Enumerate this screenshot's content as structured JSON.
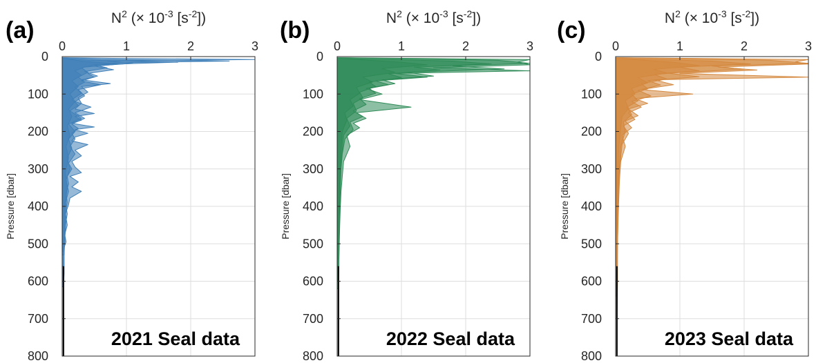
{
  "chart_data": [
    {
      "type": "line",
      "panel_label": "(a)",
      "xlabel_parts": {
        "base": "N",
        "exp": "2",
        "mid": " (× 10",
        "exp2": "-3",
        "tail": " [s",
        "exp3": "-2",
        "end": "])"
      },
      "ylabel": "Pressure [dbar]",
      "annotation": "2021 Seal data",
      "xlim": [
        0,
        3
      ],
      "ylim": [
        0,
        800
      ],
      "y_inverted": true,
      "x_axis_position": "top",
      "xticks": [
        0,
        1,
        2,
        3
      ],
      "yticks": [
        0,
        100,
        200,
        300,
        400,
        500,
        600,
        700,
        800
      ],
      "grid": true,
      "color": "#3f7fb8",
      "series": [
        {
          "x": [
            0.05,
            1.0,
            3.0,
            0.7,
            1.1,
            0.5,
            0.8,
            0.4,
            0.5,
            0.3,
            0.75,
            0.3,
            0.4,
            0.25,
            0.3,
            0.2,
            0.5,
            0.2,
            0.3,
            0.15,
            0.5,
            0.2,
            0.4,
            0.2,
            0.15,
            0.4,
            0.2,
            0.3,
            0.15,
            0.2,
            0.3,
            0.12,
            0.25,
            0.15,
            0.3,
            0.12,
            0.1,
            0.05,
            0.08,
            0.04,
            0.06,
            0.03,
            0.03,
            0.03,
            0.02
          ],
          "y": [
            3,
            5,
            8,
            12,
            18,
            25,
            35,
            45,
            55,
            62,
            72,
            80,
            95,
            110,
            125,
            140,
            152,
            160,
            170,
            178,
            188,
            195,
            205,
            215,
            225,
            235,
            250,
            265,
            280,
            295,
            310,
            320,
            335,
            348,
            360,
            378,
            395,
            420,
            450,
            475,
            495,
            510,
            540,
            580,
            615
          ]
        },
        {
          "x": [
            0.05,
            0.6,
            2.6,
            0.9,
            0.5,
            0.7,
            0.35,
            0.55,
            0.3,
            0.6,
            0.25,
            0.35,
            0.2,
            0.45,
            0.2,
            0.35,
            0.15,
            0.25,
            0.15,
            0.2,
            0.12,
            0.2,
            0.1,
            0.15,
            0.08,
            0.1,
            0.06,
            0.08,
            0.05,
            0.04,
            0.03,
            0.02
          ],
          "y": [
            3,
            8,
            12,
            16,
            22,
            30,
            40,
            52,
            65,
            75,
            88,
            105,
            120,
            135,
            150,
            165,
            180,
            192,
            205,
            220,
            240,
            260,
            285,
            300,
            320,
            340,
            365,
            390,
            420,
            460,
            500,
            560
          ]
        },
        {
          "x": [
            0.05,
            0.4,
            1.8,
            0.5,
            0.3,
            0.4,
            0.25,
            0.35,
            0.2,
            0.3,
            0.15,
            0.25,
            0.12,
            0.3,
            0.1,
            0.2,
            0.1,
            0.15,
            0.08,
            0.12,
            0.06,
            0.1,
            0.05,
            0.08,
            0.05,
            0.04,
            0.03
          ],
          "y": [
            5,
            10,
            15,
            22,
            30,
            42,
            55,
            68,
            82,
            98,
            115,
            130,
            145,
            165,
            180,
            200,
            220,
            245,
            270,
            300,
            330,
            360,
            390,
            420,
            450,
            490,
            530
          ]
        },
        {
          "x": [
            0.04,
            0.3,
            0.9,
            0.35,
            0.2,
            0.3,
            0.15,
            0.25,
            0.12,
            0.2,
            0.1,
            0.15,
            0.08,
            0.12,
            0.06,
            0.1,
            0.05,
            0.08,
            0.04,
            0.05,
            0.03
          ],
          "y": [
            5,
            12,
            20,
            28,
            38,
            50,
            65,
            80,
            100,
            120,
            140,
            160,
            185,
            210,
            240,
            270,
            310,
            350,
            400,
            460,
            520
          ]
        }
      ]
    },
    {
      "type": "line",
      "panel_label": "(b)",
      "xlabel_parts": {
        "base": "N",
        "exp": "2",
        "mid": " (× 10",
        "exp2": "-3",
        "tail": " [s",
        "exp3": "-2",
        "end": "])"
      },
      "ylabel": "Pressure [dbar]",
      "annotation": "2022 Seal data",
      "xlim": [
        0,
        3
      ],
      "ylim": [
        0,
        800
      ],
      "y_inverted": true,
      "x_axis_position": "top",
      "xticks": [
        0,
        1,
        2,
        3
      ],
      "yticks": [
        0,
        100,
        200,
        300,
        400,
        500,
        600,
        700,
        800
      ],
      "grid": true,
      "color": "#2e8b57",
      "series": [
        {
          "x": [
            0.05,
            3.0,
            2.8,
            3.0,
            1.5,
            3.0,
            0.9,
            1.4,
            0.6,
            0.8,
            0.45,
            0.7,
            0.35,
            1.15,
            0.3,
            0.45,
            0.25,
            0.35,
            0.15,
            0.2,
            0.1,
            0.08,
            0.06,
            0.05,
            0.04,
            0.03,
            0.02
          ],
          "y": [
            3,
            8,
            15,
            22,
            30,
            38,
            45,
            55,
            65,
            75,
            85,
            100,
            115,
            135,
            150,
            165,
            178,
            190,
            210,
            240,
            280,
            320,
            360,
            400,
            450,
            520,
            600
          ]
        },
        {
          "x": [
            0.05,
            2.5,
            3.0,
            1.8,
            2.6,
            1.1,
            1.5,
            0.7,
            0.9,
            0.5,
            0.6,
            0.35,
            0.45,
            0.25,
            0.4,
            0.2,
            0.25,
            0.12,
            0.08,
            0.06,
            0.05,
            0.04,
            0.03,
            0.02
          ],
          "y": [
            3,
            10,
            18,
            25,
            33,
            42,
            52,
            62,
            72,
            85,
            98,
            112,
            128,
            145,
            160,
            175,
            195,
            220,
            260,
            300,
            350,
            420,
            500,
            620
          ]
        },
        {
          "x": [
            0.04,
            1.8,
            2.4,
            1.2,
            1.6,
            0.8,
            1.0,
            0.5,
            0.6,
            0.35,
            0.4,
            0.25,
            0.3,
            0.15,
            0.2,
            0.1,
            0.08,
            0.05,
            0.04,
            0.03,
            0.02
          ],
          "y": [
            5,
            12,
            20,
            28,
            36,
            46,
            56,
            68,
            80,
            95,
            110,
            125,
            145,
            165,
            185,
            210,
            250,
            300,
            380,
            460,
            560
          ]
        },
        {
          "x": [
            0.03,
            1.0,
            1.4,
            0.7,
            0.9,
            0.4,
            0.55,
            0.3,
            0.35,
            0.2,
            0.25,
            0.12,
            0.15,
            0.08,
            0.06,
            0.04,
            0.03,
            0.02
          ],
          "y": [
            5,
            15,
            22,
            32,
            42,
            55,
            68,
            82,
            98,
            115,
            132,
            150,
            170,
            200,
            250,
            320,
            420,
            540
          ]
        }
      ]
    },
    {
      "type": "line",
      "panel_label": "(c)",
      "xlabel_parts": {
        "base": "N",
        "exp": "2",
        "mid": " (× 10",
        "exp2": "-3",
        "tail": " [s",
        "exp3": "-2",
        "end": "])"
      },
      "ylabel": "Pressure [dbar]",
      "annotation": "2023 Seal data",
      "xlim": [
        0,
        3
      ],
      "ylim": [
        0,
        800
      ],
      "y_inverted": true,
      "x_axis_position": "top",
      "xticks": [
        0,
        1,
        2,
        3
      ],
      "yticks": [
        0,
        100,
        200,
        300,
        400,
        500,
        600,
        700,
        800
      ],
      "grid": true,
      "color": "#d4883e",
      "series": [
        {
          "x": [
            0.05,
            3.0,
            2.8,
            3.0,
            1.6,
            2.2,
            1.0,
            3.0,
            0.6,
            0.9,
            0.4,
            1.2,
            0.3,
            0.5,
            0.2,
            0.35,
            0.15,
            0.25,
            0.1,
            0.15,
            0.08,
            0.06,
            0.05,
            0.04,
            0.03,
            0.03,
            0.02
          ],
          "y": [
            3,
            8,
            14,
            20,
            28,
            36,
            45,
            55,
            62,
            75,
            88,
            100,
            112,
            125,
            140,
            158,
            172,
            190,
            210,
            240,
            280,
            330,
            380,
            430,
            500,
            600,
            700
          ]
        },
        {
          "x": [
            0.05,
            2.4,
            3.0,
            1.5,
            2.0,
            0.8,
            1.3,
            0.5,
            0.7,
            0.35,
            0.55,
            0.25,
            0.4,
            0.2,
            0.3,
            0.12,
            0.2,
            0.1,
            0.08,
            0.06,
            0.04,
            0.03,
            0.02
          ],
          "y": [
            3,
            10,
            18,
            25,
            34,
            44,
            54,
            64,
            76,
            90,
            105,
            120,
            135,
            150,
            168,
            185,
            205,
            235,
            270,
            320,
            400,
            500,
            640
          ]
        },
        {
          "x": [
            0.04,
            1.5,
            2.1,
            1.0,
            1.3,
            0.6,
            0.8,
            0.4,
            0.5,
            0.25,
            0.35,
            0.18,
            0.25,
            0.12,
            0.15,
            0.08,
            0.06,
            0.04,
            0.03,
            0.02
          ],
          "y": [
            5,
            12,
            20,
            28,
            38,
            48,
            60,
            72,
            86,
            100,
            118,
            135,
            155,
            175,
            200,
            240,
            290,
            360,
            450,
            560
          ]
        },
        {
          "x": [
            0.03,
            0.9,
            1.3,
            0.6,
            0.8,
            0.35,
            0.5,
            0.25,
            0.3,
            0.15,
            0.2,
            0.1,
            0.08,
            0.05,
            0.04,
            0.03,
            0.02
          ],
          "y": [
            5,
            15,
            24,
            34,
            44,
            56,
            70,
            85,
            100,
            118,
            138,
            160,
            190,
            240,
            310,
            420,
            560
          ]
        }
      ]
    }
  ]
}
